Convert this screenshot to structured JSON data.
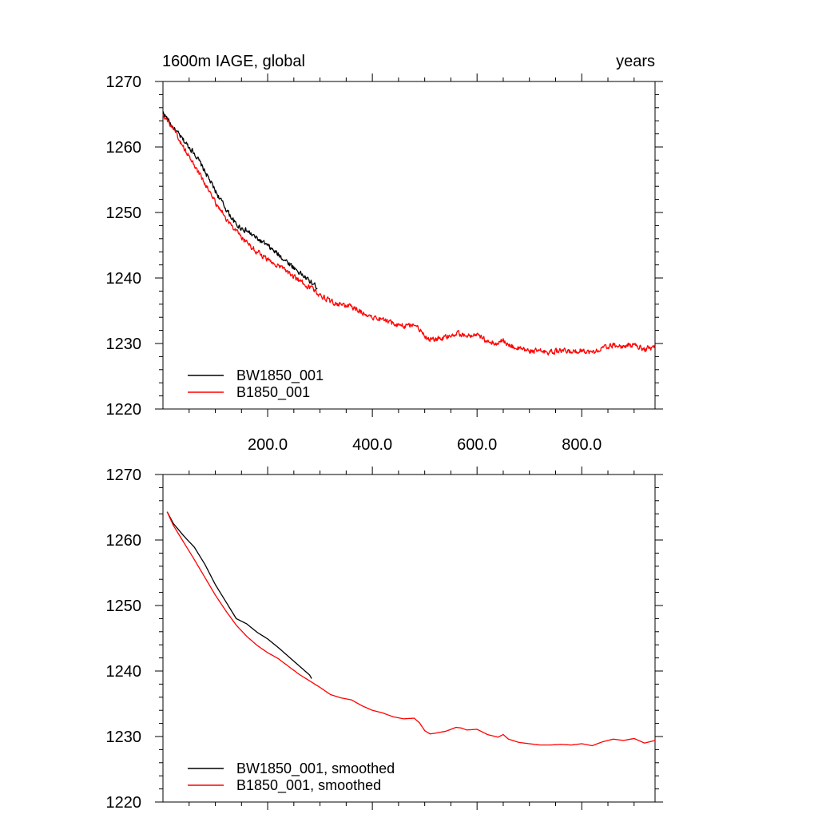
{
  "colors": {
    "BW1850_001": "#000000",
    "B1850_001": "#ff0000",
    "axis": "#000000"
  },
  "panels": [
    {
      "title_left": "1600m IAGE, global",
      "title_right": "years",
      "legend": [
        "BW1850_001",
        "B1850_001"
      ]
    },
    {
      "title_left": "",
      "title_right": "",
      "legend": [
        "BW1850_001, smoothed",
        "B1850_001, smoothed"
      ]
    }
  ],
  "chart_data": [
    {
      "type": "line",
      "title": "1600m IAGE, global",
      "title_right": "years",
      "xlim": [
        0,
        940
      ],
      "ylim": [
        1220,
        1270
      ],
      "xticks": [
        200,
        400,
        600,
        800
      ],
      "xtick_labels": [
        "200.0",
        "400.0",
        "600.0",
        "800.0"
      ],
      "yticks": [
        1220,
        1230,
        1240,
        1250,
        1260,
        1270
      ],
      "ytick_labels": [
        "1220",
        "1230",
        "1240",
        "1250",
        "1260",
        "1270"
      ],
      "legend_position": "bottom-left",
      "noise": 0.35,
      "series": [
        {
          "name": "BW1850_001",
          "color": "#000000",
          "x": [
            0,
            20,
            40,
            60,
            80,
            100,
            120,
            140,
            160,
            180,
            200,
            220,
            240,
            260,
            280,
            295
          ],
          "y": [
            1265.3,
            1262.9,
            1260.9,
            1259.1,
            1256.3,
            1253.3,
            1250.6,
            1248.1,
            1247.2,
            1246.0,
            1244.9,
            1243.6,
            1242.3,
            1240.9,
            1239.5,
            1238.6
          ]
        },
        {
          "name": "B1850_001",
          "color": "#ff0000",
          "x": [
            0,
            20,
            40,
            60,
            80,
            100,
            120,
            140,
            160,
            180,
            200,
            220,
            240,
            260,
            280,
            300,
            320,
            340,
            360,
            380,
            400,
            420,
            440,
            460,
            480,
            490,
            500,
            510,
            520,
            540,
            560,
            570,
            580,
            600,
            620,
            640,
            650,
            660,
            680,
            700,
            720,
            740,
            760,
            780,
            800,
            820,
            840,
            860,
            880,
            900,
            920,
            940
          ],
          "y": [
            1265.1,
            1262.6,
            1259.8,
            1257.2,
            1254.4,
            1251.6,
            1249.2,
            1247.0,
            1245.4,
            1244.0,
            1242.8,
            1241.9,
            1240.8,
            1239.6,
            1238.6,
            1237.5,
            1236.4,
            1235.9,
            1235.6,
            1234.8,
            1234.1,
            1233.6,
            1233.1,
            1232.7,
            1233.0,
            1232.2,
            1231.0,
            1230.5,
            1230.6,
            1230.9,
            1231.6,
            1231.4,
            1231.1,
            1231.2,
            1230.4,
            1230.0,
            1230.4,
            1229.7,
            1229.2,
            1228.9,
            1228.8,
            1228.7,
            1228.9,
            1228.7,
            1229.0,
            1228.6,
            1229.3,
            1229.7,
            1229.5,
            1229.8,
            1229.1,
            1229.6
          ]
        }
      ]
    },
    {
      "type": "line",
      "title": "",
      "xlim": [
        0,
        940
      ],
      "ylim": [
        1220,
        1270
      ],
      "xticks": [
        200,
        400,
        600,
        800
      ],
      "xtick_labels": [],
      "yticks": [
        1220,
        1230,
        1240,
        1250,
        1260,
        1270
      ],
      "ytick_labels": [
        "1220",
        "1230",
        "1240",
        "1250",
        "1260",
        "1270"
      ],
      "legend_position": "bottom-left",
      "noise": 0,
      "series": [
        {
          "name": "BW1850_001, smoothed",
          "color": "#000000",
          "x": [
            8,
            20,
            40,
            60,
            80,
            100,
            120,
            140,
            160,
            180,
            200,
            220,
            240,
            260,
            280,
            285
          ],
          "y": [
            1264.3,
            1262.5,
            1260.6,
            1258.9,
            1256.3,
            1253.2,
            1250.6,
            1248.0,
            1247.2,
            1245.9,
            1244.9,
            1243.6,
            1242.2,
            1240.8,
            1239.4,
            1238.7
          ]
        },
        {
          "name": "B1850_001, smoothed",
          "color": "#ff0000",
          "x": [
            8,
            20,
            40,
            60,
            80,
            100,
            120,
            140,
            160,
            180,
            200,
            220,
            240,
            260,
            280,
            300,
            320,
            340,
            360,
            380,
            400,
            420,
            440,
            460,
            480,
            490,
            500,
            510,
            520,
            540,
            560,
            570,
            580,
            600,
            620,
            640,
            650,
            660,
            680,
            700,
            720,
            740,
            760,
            780,
            800,
            820,
            840,
            860,
            880,
            900,
            920,
            940
          ],
          "y": [
            1264.3,
            1262.2,
            1259.6,
            1257.0,
            1254.3,
            1251.6,
            1249.2,
            1247.0,
            1245.3,
            1243.9,
            1242.8,
            1241.9,
            1240.7,
            1239.5,
            1238.5,
            1237.5,
            1236.4,
            1235.9,
            1235.6,
            1234.7,
            1234.0,
            1233.6,
            1233.0,
            1232.7,
            1232.8,
            1232.1,
            1230.9,
            1230.4,
            1230.5,
            1230.8,
            1231.4,
            1231.3,
            1231.0,
            1231.1,
            1230.3,
            1229.9,
            1230.3,
            1229.6,
            1229.1,
            1228.9,
            1228.7,
            1228.7,
            1228.8,
            1228.7,
            1228.9,
            1228.6,
            1229.2,
            1229.6,
            1229.4,
            1229.7,
            1229.0,
            1229.4
          ]
        }
      ]
    }
  ]
}
